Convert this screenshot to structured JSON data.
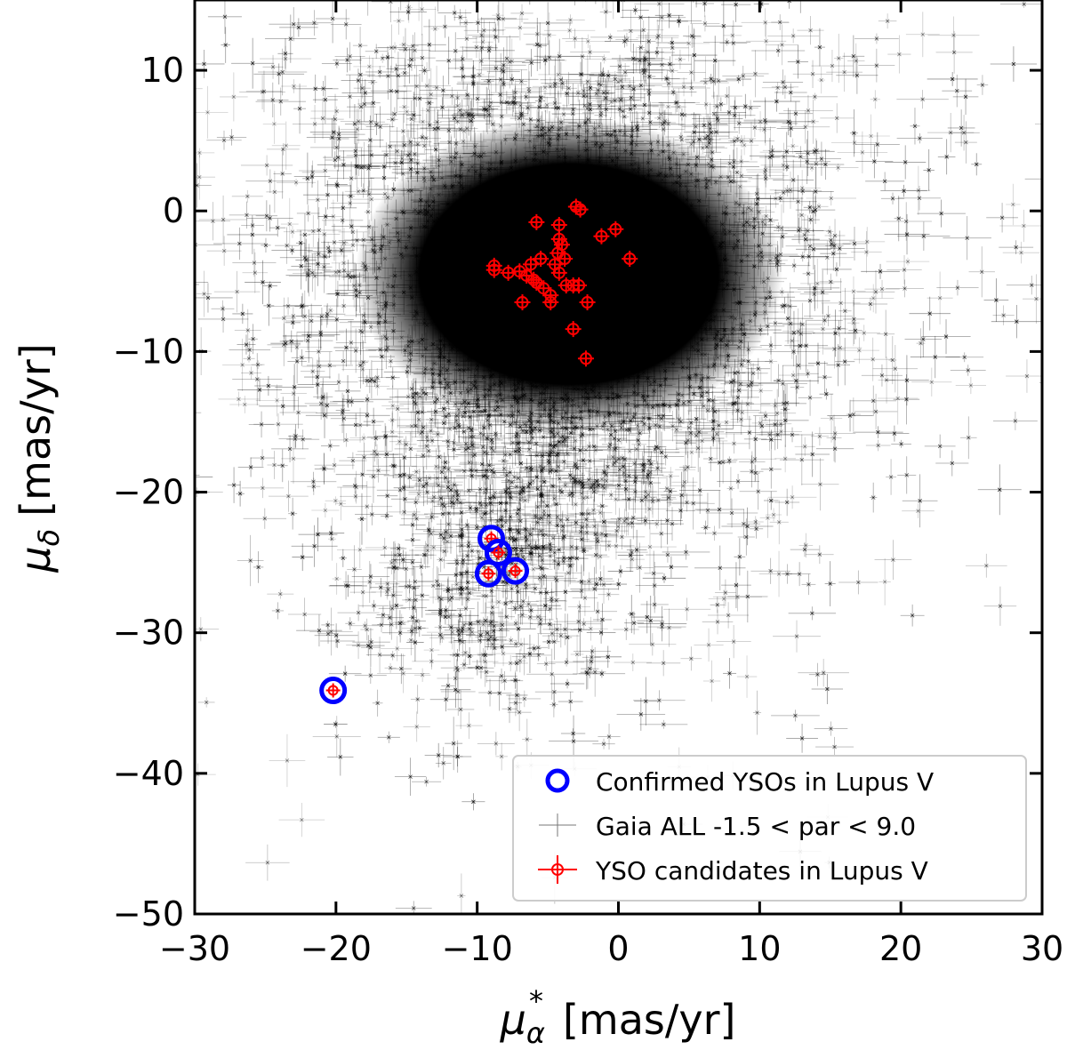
{
  "chart_data": {
    "type": "scatter",
    "xlabel": "[mas/yr]",
    "xlabel_symbol": "μ",
    "xlabel_sub": "α",
    "xlabel_sup": "*",
    "ylabel": "[mas/yr]",
    "ylabel_symbol": "μ",
    "ylabel_sub": "δ",
    "xlim": [
      -30,
      30
    ],
    "ylim": [
      -50,
      15
    ],
    "xticks": [
      -30,
      -20,
      -10,
      0,
      10,
      20,
      30
    ],
    "xtick_labels": [
      "−30",
      "−20",
      "−10",
      "0",
      "10",
      "20",
      "30"
    ],
    "yticks": [
      -50,
      -40,
      -30,
      -20,
      -10,
      0,
      10
    ],
    "ytick_labels": [
      "−50",
      "−40",
      "−30",
      "−20",
      "−10",
      "0",
      "10"
    ],
    "legend_position": "lower-right",
    "legend": [
      {
        "label": "Confirmed YSOs in Lupus V",
        "marker": "open-circle",
        "color": "#0000ff"
      },
      {
        "label": "Gaia ALL -1.5 < par < 9.0",
        "marker": "x-errorbar",
        "color": "#444444"
      },
      {
        "label": "YSO candidates in Lupus V",
        "marker": "circle-errorbar",
        "color": "#ff0000"
      }
    ],
    "series": [
      {
        "name": "Gaia ALL -1.5 < par < 9.0",
        "color": "#000000",
        "distribution": {
          "core_center": [
            -3.5,
            -4.5
          ],
          "core_radius": [
            13.5,
            10.0
          ],
          "halo_spread": [
            9.0,
            9.0
          ],
          "secondary_tail_center": [
            -9,
            -26
          ]
        }
      },
      {
        "name": "YSO candidates in Lupus V",
        "color": "#ff0000",
        "points": [
          [
            -5.8,
            -0.8
          ],
          [
            -3.0,
            0.3
          ],
          [
            -2.7,
            0.1
          ],
          [
            -4.2,
            -1.0
          ],
          [
            -1.2,
            -1.8
          ],
          [
            -0.2,
            -1.3
          ],
          [
            -4.2,
            -2.0
          ],
          [
            -4.0,
            -2.4
          ],
          [
            0.8,
            -3.4
          ],
          [
            -8.8,
            -3.9
          ],
          [
            -8.8,
            -4.2
          ],
          [
            -6.2,
            -3.8
          ],
          [
            -5.5,
            -3.4
          ],
          [
            -4.3,
            -3.0
          ],
          [
            -3.8,
            -3.4
          ],
          [
            -4.5,
            -3.8
          ],
          [
            -7.8,
            -4.4
          ],
          [
            -7.0,
            -4.3
          ],
          [
            -6.5,
            -4.6
          ],
          [
            -6.0,
            -4.9
          ],
          [
            -5.8,
            -5.1
          ],
          [
            -5.3,
            -5.5
          ],
          [
            -4.8,
            -6.0
          ],
          [
            -4.2,
            -4.4
          ],
          [
            -3.7,
            -5.3
          ],
          [
            -3.2,
            -5.3
          ],
          [
            -2.8,
            -5.3
          ],
          [
            -6.8,
            -6.5
          ],
          [
            -4.8,
            -6.5
          ],
          [
            -2.2,
            -6.5
          ],
          [
            -3.2,
            -8.4
          ],
          [
            -2.3,
            -10.5
          ]
        ]
      },
      {
        "name": "Confirmed YSOs in Lupus V",
        "color": "#0000ff",
        "points": [
          [
            -9.0,
            -23.3
          ],
          [
            -8.5,
            -24.3
          ],
          [
            -7.3,
            -25.6
          ],
          [
            -9.2,
            -25.8
          ],
          [
            -20.2,
            -34.1
          ]
        ]
      }
    ]
  }
}
